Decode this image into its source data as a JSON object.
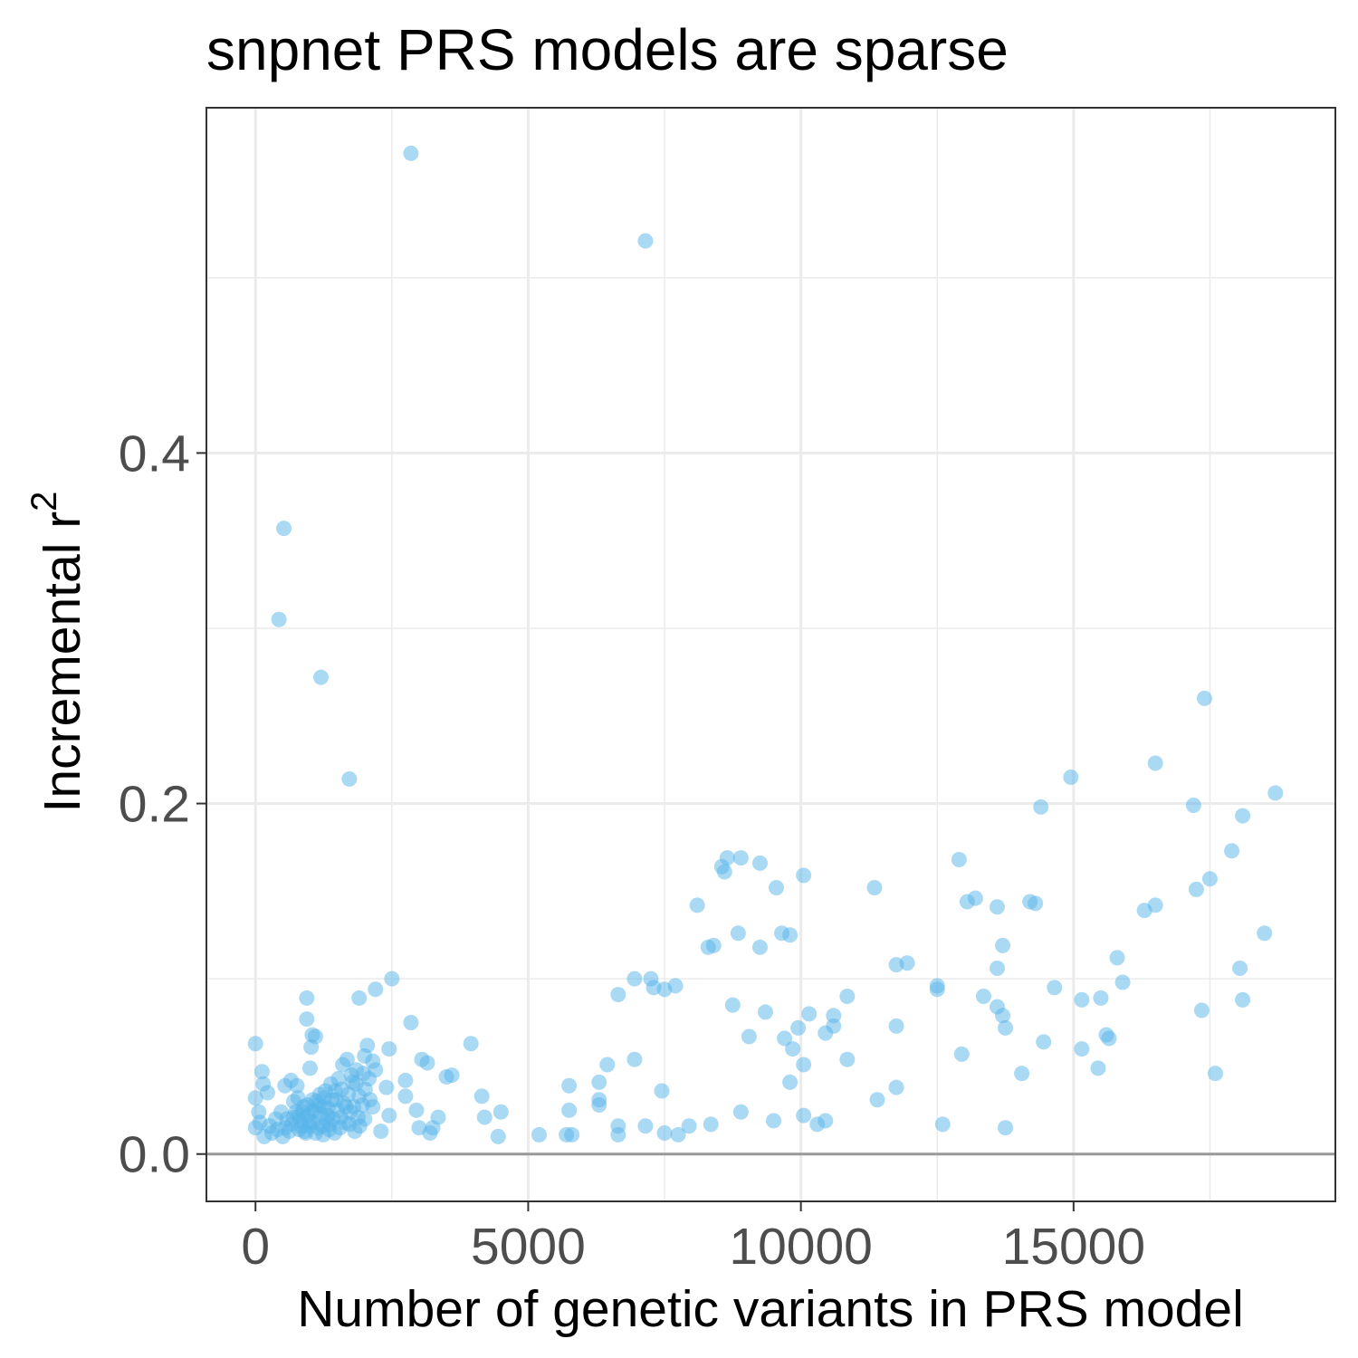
{
  "chart_data": {
    "type": "scatter",
    "title": "snpnet PRS models are sparse",
    "xlabel": "Number of genetic variants in PRS model",
    "ylabel": "Incremental r",
    "ylabel_superscript": "2",
    "xlim": [
      -900,
      19800
    ],
    "ylim": [
      -0.027,
      0.597
    ],
    "x_ticks": [
      0,
      5000,
      10000,
      15000
    ],
    "x_tick_labels": [
      "0",
      "5000",
      "10000",
      "15000"
    ],
    "y_ticks": [
      0.0,
      0.2,
      0.4
    ],
    "y_tick_labels": [
      "0.0",
      "0.2",
      "0.4"
    ],
    "x_minor_grid": [
      2500,
      7500,
      12500,
      17500
    ],
    "y_minor_grid": [
      0.1,
      0.3,
      0.5
    ],
    "grid": true,
    "reference_line_y": 0,
    "point_color": "#56B4E9",
    "series": [
      {
        "points": [
          [
            2850,
            0.571
          ],
          [
            7150,
            0.521
          ],
          [
            520,
            0.357
          ],
          [
            430,
            0.305
          ],
          [
            1200,
            0.272
          ],
          [
            1720,
            0.214
          ],
          [
            17400,
            0.26
          ],
          [
            16500,
            0.223
          ],
          [
            14950,
            0.215
          ],
          [
            18700,
            0.206
          ],
          [
            14400,
            0.198
          ],
          [
            17200,
            0.199
          ],
          [
            18100,
            0.193
          ],
          [
            17900,
            0.173
          ],
          [
            17250,
            0.151
          ],
          [
            17500,
            0.157
          ],
          [
            16500,
            0.142
          ],
          [
            16300,
            0.139
          ],
          [
            18500,
            0.126
          ],
          [
            18050,
            0.106
          ],
          [
            18100,
            0.088
          ],
          [
            17350,
            0.082
          ],
          [
            17600,
            0.046
          ],
          [
            15800,
            0.112
          ],
          [
            15900,
            0.098
          ],
          [
            14650,
            0.095
          ],
          [
            15500,
            0.089
          ],
          [
            15150,
            0.088
          ],
          [
            15600,
            0.068
          ],
          [
            15650,
            0.066
          ],
          [
            14450,
            0.064
          ],
          [
            15150,
            0.06
          ],
          [
            15450,
            0.049
          ],
          [
            14200,
            0.144
          ],
          [
            14300,
            0.143
          ],
          [
            13600,
            0.141
          ],
          [
            13700,
            0.119
          ],
          [
            13600,
            0.106
          ],
          [
            13600,
            0.084
          ],
          [
            13700,
            0.079
          ],
          [
            13750,
            0.072
          ],
          [
            13350,
            0.09
          ],
          [
            13050,
            0.144
          ],
          [
            13200,
            0.146
          ],
          [
            12900,
            0.168
          ],
          [
            12500,
            0.096
          ],
          [
            12500,
            0.094
          ],
          [
            12950,
            0.057
          ],
          [
            14050,
            0.046
          ],
          [
            13750,
            0.015
          ],
          [
            12600,
            0.017
          ],
          [
            11350,
            0.152
          ],
          [
            11750,
            0.108
          ],
          [
            11950,
            0.109
          ],
          [
            11750,
            0.073
          ],
          [
            11750,
            0.038
          ],
          [
            11400,
            0.031
          ],
          [
            10050,
            0.159
          ],
          [
            9550,
            0.152
          ],
          [
            9250,
            0.166
          ],
          [
            8900,
            0.169
          ],
          [
            8650,
            0.169
          ],
          [
            8550,
            0.164
          ],
          [
            8600,
            0.161
          ],
          [
            8100,
            0.142
          ],
          [
            8850,
            0.126
          ],
          [
            9650,
            0.126
          ],
          [
            9800,
            0.125
          ],
          [
            9250,
            0.118
          ],
          [
            8400,
            0.119
          ],
          [
            8300,
            0.118
          ],
          [
            10850,
            0.09
          ],
          [
            8750,
            0.085
          ],
          [
            9350,
            0.081
          ],
          [
            10150,
            0.08
          ],
          [
            10600,
            0.079
          ],
          [
            10600,
            0.073
          ],
          [
            9950,
            0.072
          ],
          [
            10450,
            0.069
          ],
          [
            9050,
            0.067
          ],
          [
            9700,
            0.066
          ],
          [
            9850,
            0.06
          ],
          [
            10850,
            0.054
          ],
          [
            10050,
            0.051
          ],
          [
            9800,
            0.041
          ],
          [
            8900,
            0.024
          ],
          [
            10050,
            0.022
          ],
          [
            9500,
            0.019
          ],
          [
            10300,
            0.017
          ],
          [
            10450,
            0.019
          ],
          [
            6650,
            0.091
          ],
          [
            6950,
            0.1
          ],
          [
            7250,
            0.1
          ],
          [
            7300,
            0.095
          ],
          [
            7500,
            0.094
          ],
          [
            7700,
            0.096
          ],
          [
            7450,
            0.036
          ],
          [
            6950,
            0.054
          ],
          [
            6450,
            0.051
          ],
          [
            6300,
            0.041
          ],
          [
            6300,
            0.031
          ],
          [
            6300,
            0.028
          ],
          [
            5750,
            0.039
          ],
          [
            5750,
            0.025
          ],
          [
            6650,
            0.016
          ],
          [
            6650,
            0.011
          ],
          [
            7150,
            0.016
          ],
          [
            7500,
            0.012
          ],
          [
            7750,
            0.011
          ],
          [
            7950,
            0.016
          ],
          [
            8350,
            0.017
          ],
          [
            5700,
            0.011
          ],
          [
            5800,
            0.011
          ],
          [
            5200,
            0.011
          ],
          [
            4500,
            0.024
          ],
          [
            4450,
            0.01
          ],
          [
            4150,
            0.033
          ],
          [
            4200,
            0.021
          ],
          [
            3950,
            0.063
          ],
          [
            3600,
            0.045
          ],
          [
            3500,
            0.044
          ],
          [
            3350,
            0.021
          ],
          [
            3250,
            0.015
          ],
          [
            3200,
            0.012
          ],
          [
            3150,
            0.052
          ],
          [
            3050,
            0.054
          ],
          [
            2850,
            0.075
          ],
          [
            2500,
            0.1
          ],
          [
            2200,
            0.094
          ],
          [
            1900,
            0.089
          ],
          [
            2150,
            0.053
          ],
          [
            2450,
            0.06
          ],
          [
            2750,
            0.042
          ],
          [
            2950,
            0.025
          ],
          [
            3000,
            0.015
          ],
          [
            2750,
            0.033
          ],
          [
            2400,
            0.038
          ],
          [
            2450,
            0.022
          ],
          [
            2150,
            0.027
          ],
          [
            2300,
            0.013
          ],
          [
            2050,
            0.062
          ],
          [
            2000,
            0.056
          ],
          [
            2200,
            0.048
          ],
          [
            940,
            0.089
          ],
          [
            940,
            0.077
          ],
          [
            1040,
            0.068
          ],
          [
            1100,
            0.067
          ],
          [
            1020,
            0.061
          ],
          [
            1000,
            0.049
          ],
          [
            0,
            0.063
          ],
          [
            120,
            0.047
          ],
          [
            140,
            0.04
          ],
          [
            220,
            0.035
          ],
          [
            0,
            0.032
          ],
          [
            60,
            0.024
          ],
          [
            80,
            0.018
          ],
          [
            0,
            0.015
          ],
          [
            160,
            0.01
          ],
          [
            300,
            0.012
          ],
          [
            400,
            0.014
          ],
          [
            500,
            0.01
          ],
          [
            650,
            0.042
          ],
          [
            760,
            0.039
          ],
          [
            540,
            0.039
          ],
          [
            700,
            0.03
          ],
          [
            800,
            0.022
          ],
          [
            850,
            0.016
          ],
          [
            900,
            0.013
          ],
          [
            980,
            0.019
          ],
          [
            1050,
            0.025
          ],
          [
            1120,
            0.03
          ],
          [
            1180,
            0.034
          ],
          [
            1250,
            0.027
          ],
          [
            1320,
            0.022
          ],
          [
            1400,
            0.031
          ],
          [
            1460,
            0.036
          ],
          [
            1520,
            0.043
          ],
          [
            1600,
            0.051
          ],
          [
            1680,
            0.054
          ],
          [
            1760,
            0.045
          ],
          [
            1840,
            0.04
          ],
          [
            1900,
            0.033
          ],
          [
            1960,
            0.028
          ],
          [
            2010,
            0.037
          ],
          [
            1740,
            0.024
          ],
          [
            1640,
            0.018
          ],
          [
            1550,
            0.015
          ],
          [
            1450,
            0.012
          ],
          [
            1350,
            0.014
          ],
          [
            1240,
            0.011
          ],
          [
            1150,
            0.015
          ],
          [
            1060,
            0.018
          ],
          [
            960,
            0.022
          ],
          [
            880,
            0.027
          ],
          [
            780,
            0.032
          ],
          [
            660,
            0.017
          ],
          [
            580,
            0.02
          ],
          [
            470,
            0.024
          ],
          [
            370,
            0.02
          ],
          [
            260,
            0.016
          ],
          [
            1280,
            0.036
          ],
          [
            1380,
            0.04
          ],
          [
            1500,
            0.025
          ],
          [
            1560,
            0.021
          ],
          [
            1620,
            0.029
          ],
          [
            1700,
            0.034
          ],
          [
            1800,
            0.027
          ],
          [
            1880,
            0.021
          ],
          [
            1980,
            0.046
          ],
          [
            2080,
            0.043
          ],
          [
            1910,
            0.016
          ],
          [
            1820,
            0.013
          ],
          [
            1720,
            0.017
          ],
          [
            1300,
            0.019
          ],
          [
            1200,
            0.023
          ],
          [
            1100,
            0.012
          ],
          [
            1000,
            0.016
          ],
          [
            920,
            0.012
          ],
          [
            820,
            0.019
          ],
          [
            740,
            0.024
          ],
          [
            620,
            0.013
          ],
          [
            550,
            0.015
          ],
          [
            1160,
            0.028
          ],
          [
            1230,
            0.016
          ],
          [
            1330,
            0.026
          ],
          [
            1420,
            0.02
          ],
          [
            1470,
            0.031
          ],
          [
            1580,
            0.037
          ],
          [
            1660,
            0.027
          ],
          [
            1780,
            0.041
          ],
          [
            1850,
            0.048
          ],
          [
            2000,
            0.02
          ],
          [
            2100,
            0.031
          ],
          [
            1050,
            0.031
          ],
          [
            950,
            0.028
          ],
          [
            870,
            0.024
          ],
          [
            800,
            0.014
          ],
          [
            700,
            0.021
          ],
          [
            1360,
            0.017
          ],
          [
            1260,
            0.032
          ],
          [
            1080,
            0.024
          ]
        ]
      }
    ]
  }
}
